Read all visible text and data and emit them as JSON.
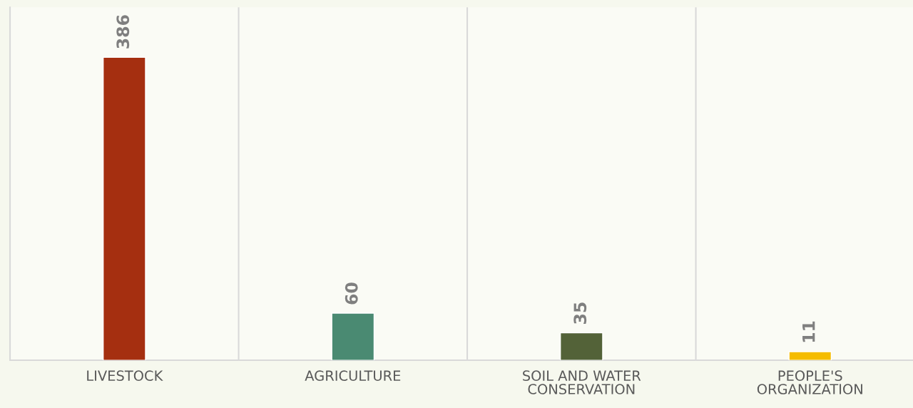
{
  "chart_data": {
    "type": "bar",
    "categories": [
      "LIVESTOCK",
      "AGRICULTURE",
      "SOIL AND WATER CONSERVATION",
      "PEOPLE'S ORGANIZATION"
    ],
    "values": [
      386,
      60,
      35,
      11
    ],
    "colors": [
      "#a52f10",
      "#4a8a72",
      "#536238",
      "#f5bc00"
    ],
    "data_labels": true,
    "grid": "x",
    "legend": false
  }
}
